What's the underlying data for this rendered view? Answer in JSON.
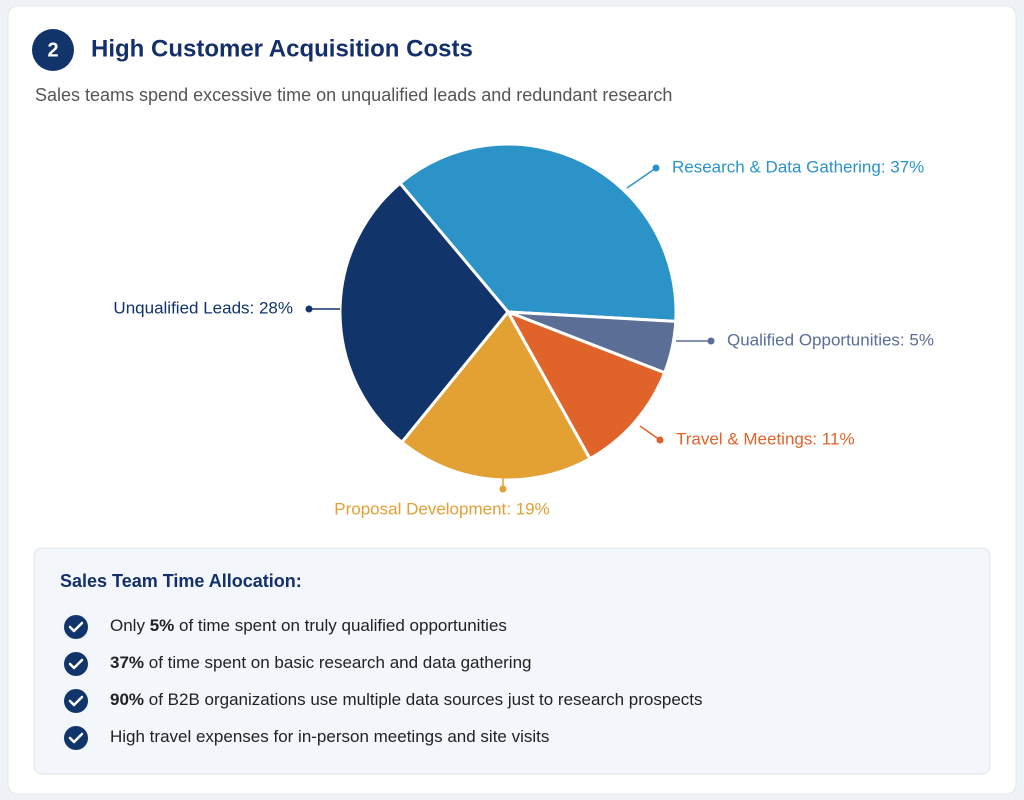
{
  "header": {
    "badge": 2,
    "title": "High Customer Acquisition Costs",
    "subtitle": "Sales teams spend excessive time on unqualified leads and redundant research"
  },
  "chart_data": {
    "type": "pie",
    "categories": [
      "Research & Data Gathering: 37%",
      "Qualified Opportunities: 5%",
      "Travel & Meetings: 11%",
      "Proposal Development: 19%",
      "Unqualified Leads: 28%"
    ],
    "values": [
      37,
      5,
      11,
      19,
      28
    ],
    "colors": [
      "#2b93c8",
      "#5a6e96",
      "#e0632a",
      "#e3a033",
      "#11346a"
    ]
  },
  "summary": {
    "heading": "Sales Team Time Allocation:",
    "items": [
      {
        "parts": [
          "Only ",
          "5%",
          " of time spent on truly qualified opportunities"
        ],
        "bold": 1
      },
      {
        "parts": [
          "37%",
          " of time spent on basic research and data gathering"
        ],
        "bold": 0
      },
      {
        "parts": [
          "90%",
          " of B2B organizations use multiple data sources just to research prospects"
        ],
        "bold": 0
      },
      {
        "parts": [
          "High travel expenses for in-person meetings and site visits"
        ]
      }
    ]
  }
}
